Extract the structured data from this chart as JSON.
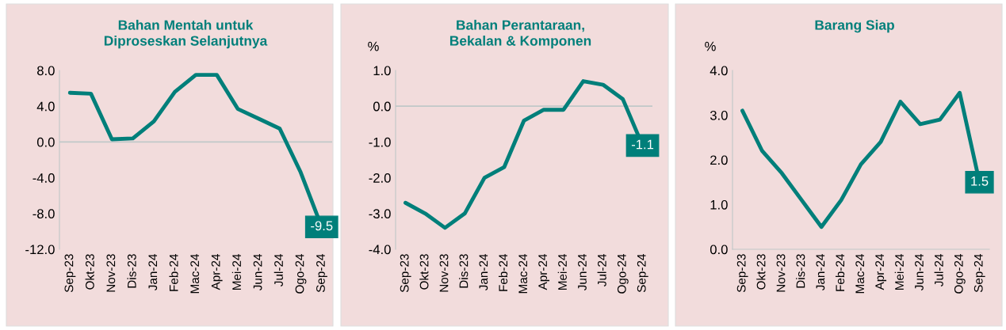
{
  "chart_data": [
    {
      "type": "line",
      "title": "Bahan Mentah untuk\nDiproseskan Selanjutnya",
      "categories": [
        "Sep-23",
        "Okt-23",
        "Nov-23",
        "Dis-23",
        "Jan-24",
        "Feb-24",
        "Mac-24",
        "Apr-24",
        "Mei-24",
        "Jun-24",
        "Jul-24",
        "Ogo-24",
        "Sep-24"
      ],
      "series": [
        {
          "color": "#007f7a",
          "values": [
            5.5,
            5.4,
            0.3,
            0.4,
            2.3,
            5.6,
            7.5,
            7.5,
            3.7,
            2.6,
            1.5,
            -3.4,
            -9.5
          ],
          "value_labels": [
            null,
            null,
            null,
            null,
            null,
            null,
            null,
            null,
            null,
            null,
            null,
            null,
            "-9.5"
          ]
        }
      ],
      "ylim": [
        -12,
        8
      ],
      "yticks": [
        {
          "value": -12,
          "label": "-12.0"
        },
        {
          "value": -8,
          "label": "-8.0"
        },
        {
          "value": -4,
          "label": "-4.0"
        },
        {
          "value": 0,
          "label": "0.0"
        },
        {
          "value": 4,
          "label": "4.0"
        },
        {
          "value": 8,
          "label": "8.0"
        }
      ],
      "ref_lines": [
        {
          "axis": "y",
          "value": 0,
          "color": "#c0c8c8"
        }
      ],
      "grid": false,
      "marker": "none",
      "line_style": "solid"
    },
    {
      "type": "line",
      "title": "Bahan Perantaraan,\nBekalan & Komponen",
      "ylabel": "%",
      "categories": [
        "Sep-23",
        "Okt-23",
        "Nov-23",
        "Dis-23",
        "Jan-24",
        "Feb-24",
        "Mac-24",
        "Apr-24",
        "Mei-24",
        "Jun-24",
        "Jul-24",
        "Ogo-24",
        "Sep-24"
      ],
      "series": [
        {
          "color": "#007f7a",
          "values": [
            -2.7,
            -3.0,
            -3.4,
            -3.0,
            -2.0,
            -1.7,
            -0.4,
            -0.1,
            -0.1,
            0.7,
            0.6,
            0.2,
            -1.1
          ],
          "value_labels": [
            null,
            null,
            null,
            null,
            null,
            null,
            null,
            null,
            null,
            null,
            null,
            null,
            "-1.1"
          ]
        }
      ],
      "ylim": [
        -4,
        1
      ],
      "yticks": [
        {
          "value": -4,
          "label": "-4.0"
        },
        {
          "value": -3,
          "label": "-3.0"
        },
        {
          "value": -2,
          "label": "-2.0"
        },
        {
          "value": -1,
          "label": "-1.0"
        },
        {
          "value": 0,
          "label": "0.0"
        },
        {
          "value": 1,
          "label": "1.0"
        }
      ],
      "ref_lines": [
        {
          "axis": "y",
          "value": 0,
          "color": "#c0c8c8"
        }
      ],
      "grid": false,
      "marker": "none",
      "line_style": "solid"
    },
    {
      "type": "line",
      "title": "Barang Siap",
      "ylabel": "%",
      "categories": [
        "Sep-23",
        "Okt-23",
        "Nov-23",
        "Dis-23",
        "Jan-24",
        "Feb-24",
        "Mac-24",
        "Apr-24",
        "Mei-24",
        "Jun-24",
        "Jul-24",
        "Ogo-24",
        "Sep-24"
      ],
      "series": [
        {
          "color": "#007f7a",
          "values": [
            3.1,
            2.2,
            1.7,
            1.1,
            0.5,
            1.1,
            1.9,
            2.4,
            3.3,
            2.8,
            2.9,
            3.5,
            1.5
          ],
          "value_labels": [
            null,
            null,
            null,
            null,
            null,
            null,
            null,
            null,
            null,
            null,
            null,
            null,
            "1.5"
          ]
        }
      ],
      "ylim": [
        0,
        4
      ],
      "yticks": [
        {
          "value": 0,
          "label": "0.0"
        },
        {
          "value": 1,
          "label": "1.0"
        },
        {
          "value": 2,
          "label": "2.0"
        },
        {
          "value": 3,
          "label": "3.0"
        },
        {
          "value": 4,
          "label": "4.0"
        }
      ],
      "grid": false,
      "marker": "none",
      "line_style": "solid"
    }
  ]
}
